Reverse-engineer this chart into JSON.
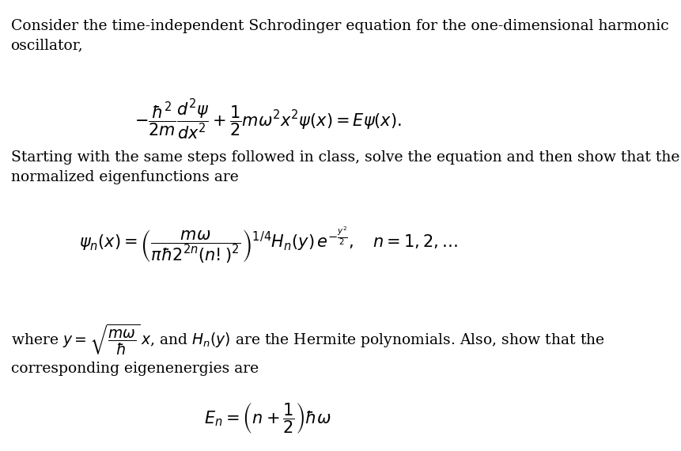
{
  "background_color": "#ffffff",
  "text_color": "#000000",
  "figsize": [
    8.62,
    5.7
  ],
  "dpi": 100,
  "para1": "Consider the time-independent Schrodinger equation for the one-dimensional harmonic\noscillator,",
  "eq1": "$-\\dfrac{\\hbar^2}{2m}\\dfrac{d^2\\psi}{dx^2} + \\dfrac{1}{2}m\\omega^2 x^2 \\psi(x) = E\\psi(x).$",
  "para2": "Starting with the same steps followed in class, solve the equation and then show that the\nnormalized eigenfunctions are",
  "eq2": "$\\psi_n(x) = \\left(\\dfrac{m\\omega}{\\pi\\hbar 2^{2n}\\left(n!\\right)^2}\\right)^{1/4} H_n(y)\\, e^{-\\frac{y^2}{2}},\\quad n=1,2,\\ldots$",
  "para3": "where $y = \\sqrt{\\dfrac{m\\omega}{\\hbar}}\\, x$, and $H_n(y)$ are the Hermite polynomials. Also, show that the\ncorresponding eigenenergies are",
  "eq3": "$E_n = \\left(n + \\dfrac{1}{2}\\right)\\hbar\\omega$"
}
